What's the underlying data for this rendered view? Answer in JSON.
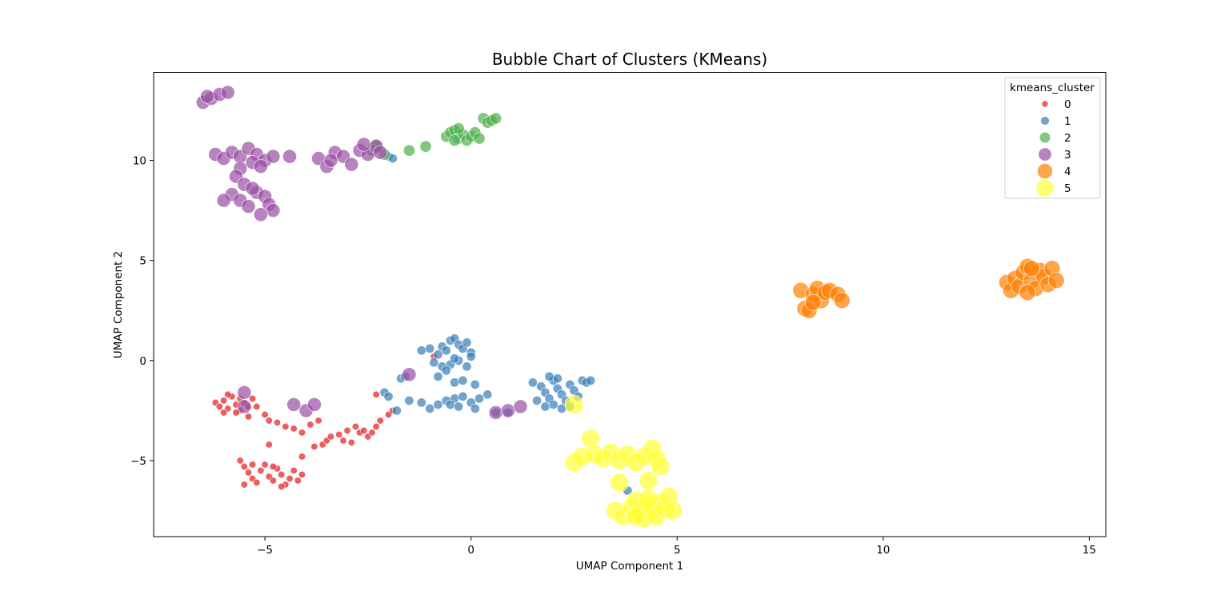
{
  "chart_data": {
    "type": "scatter",
    "title": "Bubble Chart of Clusters (KMeans)",
    "xlabel": "UMAP Component 1",
    "ylabel": "UMAP Component 2",
    "xlim": [
      -7.7,
      15.4
    ],
    "ylim": [
      -8.8,
      14.4
    ],
    "xticks": [
      -5,
      0,
      5,
      10,
      15
    ],
    "yticks": [
      -5,
      0,
      5,
      10
    ],
    "xtick_labels": [
      "−5",
      "0",
      "5",
      "10",
      "15"
    ],
    "ytick_labels": [
      "−5",
      "0",
      "5",
      "10"
    ],
    "grid": false,
    "legend": {
      "title": "kmeans_cluster",
      "placement": "top-right",
      "entries": [
        "0",
        "1",
        "2",
        "3",
        "4",
        "5"
      ]
    },
    "series": [
      {
        "name": "0",
        "color": "#e41a1c",
        "bubble_size": 1,
        "points": [
          [
            -6.2,
            -2.1
          ],
          [
            -6.1,
            -2.3
          ],
          [
            -6.0,
            -2.0
          ],
          [
            -5.9,
            -2.4
          ],
          [
            -5.8,
            -1.8
          ],
          [
            -5.7,
            -2.2
          ],
          [
            -5.6,
            -2.5
          ],
          [
            -5.5,
            -2.1
          ],
          [
            -5.4,
            -2.3
          ],
          [
            -5.3,
            -1.9
          ],
          [
            -6.0,
            -2.6
          ],
          [
            -5.9,
            -1.7
          ],
          [
            -5.7,
            -2.6
          ],
          [
            -5.6,
            -1.9
          ],
          [
            -5.4,
            -2.8
          ],
          [
            -5.2,
            -2.3
          ],
          [
            -5.0,
            -2.7
          ],
          [
            -4.9,
            -3.0
          ],
          [
            -4.7,
            -3.1
          ],
          [
            -4.5,
            -3.3
          ],
          [
            -4.3,
            -3.4
          ],
          [
            -4.1,
            -3.6
          ],
          [
            -3.9,
            -3.2
          ],
          [
            -3.7,
            -3.0
          ],
          [
            -3.6,
            -4.2
          ],
          [
            -3.5,
            -4.0
          ],
          [
            -3.4,
            -3.8
          ],
          [
            -3.2,
            -3.7
          ],
          [
            -3.1,
            -4.0
          ],
          [
            -3.0,
            -3.5
          ],
          [
            -2.9,
            -4.1
          ],
          [
            -2.8,
            -3.3
          ],
          [
            -2.7,
            -3.6
          ],
          [
            -2.6,
            -3.5
          ],
          [
            -2.5,
            -3.8
          ],
          [
            -2.4,
            -3.6
          ],
          [
            -2.3,
            -3.3
          ],
          [
            -2.2,
            -3.0
          ],
          [
            -2.0,
            -2.7
          ],
          [
            -1.9,
            -2.5
          ],
          [
            -5.5,
            -5.3
          ],
          [
            -5.4,
            -5.6
          ],
          [
            -5.3,
            -5.9
          ],
          [
            -5.2,
            -6.1
          ],
          [
            -5.1,
            -5.5
          ],
          [
            -5.0,
            -5.2
          ],
          [
            -4.9,
            -5.8
          ],
          [
            -4.8,
            -6.0
          ],
          [
            -4.7,
            -5.4
          ],
          [
            -4.6,
            -5.7
          ],
          [
            -4.5,
            -6.2
          ],
          [
            -4.4,
            -5.9
          ],
          [
            -4.3,
            -5.5
          ],
          [
            -4.2,
            -6.0
          ],
          [
            -4.1,
            -5.7
          ],
          [
            -5.6,
            -5.0
          ],
          [
            -5.3,
            -5.2
          ],
          [
            -4.8,
            -5.3
          ],
          [
            -4.6,
            -6.3
          ],
          [
            -5.5,
            -6.2
          ],
          [
            -4.1,
            -4.8
          ],
          [
            -4.9,
            -4.2
          ],
          [
            -3.8,
            -4.3
          ],
          [
            -0.9,
            0.2
          ],
          [
            -2.3,
            -1.7
          ]
        ]
      },
      {
        "name": "1",
        "color": "#377eb8",
        "bubble_size": 2,
        "points": [
          [
            -1.2,
            0.5
          ],
          [
            -1.0,
            0.6
          ],
          [
            -0.8,
            0.3
          ],
          [
            -0.7,
            0.7
          ],
          [
            -0.6,
            0.5
          ],
          [
            -0.5,
            1.0
          ],
          [
            -0.4,
            1.1
          ],
          [
            -0.3,
            0.8
          ],
          [
            -0.2,
            0.6
          ],
          [
            -0.1,
            0.9
          ],
          [
            0.0,
            0.4
          ],
          [
            -0.9,
            -0.1
          ],
          [
            -0.7,
            -0.3
          ],
          [
            -0.5,
            -0.2
          ],
          [
            -0.3,
            0.0
          ],
          [
            -0.1,
            -0.3
          ],
          [
            0.0,
            0.2
          ],
          [
            -0.8,
            -0.8
          ],
          [
            -0.6,
            -0.5
          ],
          [
            -0.4,
            -1.1
          ],
          [
            -0.2,
            -1.0
          ],
          [
            0.1,
            -1.2
          ],
          [
            -1.5,
            -2.0
          ],
          [
            -1.2,
            -2.1
          ],
          [
            -1.0,
            -2.4
          ],
          [
            -0.8,
            -2.2
          ],
          [
            -0.6,
            -2.0
          ],
          [
            -0.4,
            -1.9
          ],
          [
            -0.2,
            -1.8
          ],
          [
            0.0,
            -2.1
          ],
          [
            0.2,
            -1.9
          ],
          [
            0.4,
            -1.7
          ],
          [
            0.6,
            -2.6
          ],
          [
            -0.5,
            -2.2
          ],
          [
            -0.3,
            -2.3
          ],
          [
            0.1,
            -2.4
          ],
          [
            -1.7,
            -0.9
          ],
          [
            -2.1,
            -1.6
          ],
          [
            -2.0,
            -1.8
          ],
          [
            -1.8,
            -2.5
          ],
          [
            1.5,
            -1.1
          ],
          [
            1.7,
            -1.3
          ],
          [
            1.8,
            -1.6
          ],
          [
            1.9,
            -1.9
          ],
          [
            2.0,
            -1.0
          ],
          [
            2.1,
            -1.4
          ],
          [
            2.2,
            -1.7
          ],
          [
            2.3,
            -2.0
          ],
          [
            2.4,
            -1.2
          ],
          [
            2.5,
            -1.5
          ],
          [
            2.6,
            -1.8
          ],
          [
            2.7,
            -1.0
          ],
          [
            2.8,
            -1.1
          ],
          [
            2.9,
            -1.0
          ],
          [
            1.6,
            -2.0
          ],
          [
            1.8,
            -2.3
          ],
          [
            2.0,
            -2.2
          ],
          [
            2.2,
            -2.4
          ],
          [
            2.4,
            -2.3
          ],
          [
            1.9,
            -0.8
          ],
          [
            2.1,
            -0.9
          ],
          [
            -2.0,
            10.2
          ],
          [
            -1.9,
            10.1
          ],
          [
            -0.4,
            0.1
          ],
          [
            3.8,
            -6.5
          ],
          [
            -1.6,
            -0.8
          ],
          [
            0.9,
            -2.6
          ]
        ]
      },
      {
        "name": "2",
        "color": "#4daf4a",
        "bubble_size": 3,
        "points": [
          [
            0.3,
            12.1
          ],
          [
            0.4,
            11.9
          ],
          [
            0.5,
            12.0
          ],
          [
            0.6,
            12.1
          ],
          [
            -0.6,
            11.2
          ],
          [
            -0.5,
            11.4
          ],
          [
            -0.4,
            11.5
          ],
          [
            -0.3,
            11.1
          ],
          [
            -0.2,
            11.3
          ],
          [
            -0.1,
            11.0
          ],
          [
            0.0,
            11.2
          ],
          [
            0.1,
            11.4
          ],
          [
            0.2,
            11.1
          ],
          [
            -0.4,
            11.0
          ],
          [
            -0.3,
            11.6
          ],
          [
            -1.1,
            10.7
          ],
          [
            -1.5,
            10.5
          ],
          [
            -2.3,
            10.8
          ],
          [
            -2.4,
            10.5
          ],
          [
            -2.1,
            10.3
          ]
        ]
      },
      {
        "name": "3",
        "color": "#984ea3",
        "bubble_size": 4,
        "points": [
          [
            -6.5,
            12.9
          ],
          [
            -6.3,
            13.1
          ],
          [
            -6.1,
            13.3
          ],
          [
            -5.9,
            13.4
          ],
          [
            -6.4,
            13.2
          ],
          [
            -6.2,
            10.3
          ],
          [
            -6.0,
            10.1
          ],
          [
            -5.8,
            10.4
          ],
          [
            -5.6,
            10.2
          ],
          [
            -5.4,
            10.6
          ],
          [
            -5.2,
            10.3
          ],
          [
            -5.0,
            10.0
          ],
          [
            -4.8,
            10.2
          ],
          [
            -5.6,
            9.6
          ],
          [
            -5.3,
            9.9
          ],
          [
            -5.1,
            9.7
          ],
          [
            -5.7,
            9.2
          ],
          [
            -5.5,
            8.8
          ],
          [
            -5.8,
            8.3
          ],
          [
            -5.6,
            8.0
          ],
          [
            -5.4,
            7.7
          ],
          [
            -5.2,
            8.4
          ],
          [
            -5.0,
            8.2
          ],
          [
            -4.9,
            7.8
          ],
          [
            -4.8,
            7.5
          ],
          [
            -5.1,
            7.3
          ],
          [
            -6.0,
            8.0
          ],
          [
            -5.3,
            8.6
          ],
          [
            -4.4,
            10.2
          ],
          [
            -3.7,
            10.1
          ],
          [
            -3.5,
            9.7
          ],
          [
            -3.3,
            10.4
          ],
          [
            -3.1,
            10.2
          ],
          [
            -2.9,
            9.8
          ],
          [
            -2.7,
            10.5
          ],
          [
            -2.5,
            10.3
          ],
          [
            -2.3,
            10.7
          ],
          [
            -2.6,
            10.8
          ],
          [
            -3.4,
            10.0
          ],
          [
            -2.2,
            10.4
          ],
          [
            -4.3,
            -2.2
          ],
          [
            -4.0,
            -2.5
          ],
          [
            -3.8,
            -2.2
          ],
          [
            -5.5,
            -1.6
          ],
          [
            -1.5,
            -0.7
          ],
          [
            0.6,
            -2.6
          ],
          [
            0.9,
            -2.5
          ],
          [
            1.2,
            -2.3
          ],
          [
            -5.5,
            -2.3
          ]
        ]
      },
      {
        "name": "4",
        "color": "#ff7f00",
        "bubble_size": 5,
        "points": [
          [
            8.0,
            3.5
          ],
          [
            8.1,
            2.6
          ],
          [
            8.2,
            2.5
          ],
          [
            8.3,
            3.3
          ],
          [
            8.4,
            3.6
          ],
          [
            8.5,
            3.0
          ],
          [
            8.6,
            3.4
          ],
          [
            8.7,
            3.5
          ],
          [
            8.9,
            3.3
          ],
          [
            9.0,
            3.0
          ],
          [
            8.3,
            2.9
          ],
          [
            13.0,
            3.9
          ],
          [
            13.1,
            3.5
          ],
          [
            13.2,
            4.1
          ],
          [
            13.3,
            3.7
          ],
          [
            13.4,
            4.4
          ],
          [
            13.5,
            4.7
          ],
          [
            13.6,
            4.0
          ],
          [
            13.7,
            3.6
          ],
          [
            13.8,
            4.5
          ],
          [
            13.9,
            4.2
          ],
          [
            14.0,
            3.8
          ],
          [
            14.1,
            4.6
          ],
          [
            14.2,
            4.0
          ],
          [
            13.5,
            3.4
          ],
          [
            13.6,
            4.6
          ]
        ]
      },
      {
        "name": "5",
        "color": "#ffff33",
        "bubble_size": 6,
        "points": [
          [
            2.5,
            -5.1
          ],
          [
            2.7,
            -4.8
          ],
          [
            2.9,
            -3.9
          ],
          [
            3.0,
            -4.7
          ],
          [
            3.2,
            -4.9
          ],
          [
            3.4,
            -4.6
          ],
          [
            3.6,
            -5.0
          ],
          [
            3.8,
            -4.7
          ],
          [
            4.0,
            -5.1
          ],
          [
            4.2,
            -4.8
          ],
          [
            4.4,
            -4.4
          ],
          [
            4.5,
            -4.9
          ],
          [
            4.6,
            -5.3
          ],
          [
            3.6,
            -6.1
          ],
          [
            4.3,
            -6.0
          ],
          [
            3.5,
            -7.5
          ],
          [
            3.7,
            -7.8
          ],
          [
            3.9,
            -7.3
          ],
          [
            4.0,
            -7.0
          ],
          [
            4.1,
            -7.6
          ],
          [
            4.2,
            -7.9
          ],
          [
            4.3,
            -7.2
          ],
          [
            4.4,
            -7.5
          ],
          [
            4.5,
            -7.8
          ],
          [
            4.6,
            -7.1
          ],
          [
            4.7,
            -7.4
          ],
          [
            4.8,
            -6.8
          ],
          [
            4.9,
            -7.5
          ],
          [
            4.0,
            -7.8
          ],
          [
            4.3,
            -6.9
          ],
          [
            2.5,
            -2.2
          ]
        ]
      }
    ]
  }
}
